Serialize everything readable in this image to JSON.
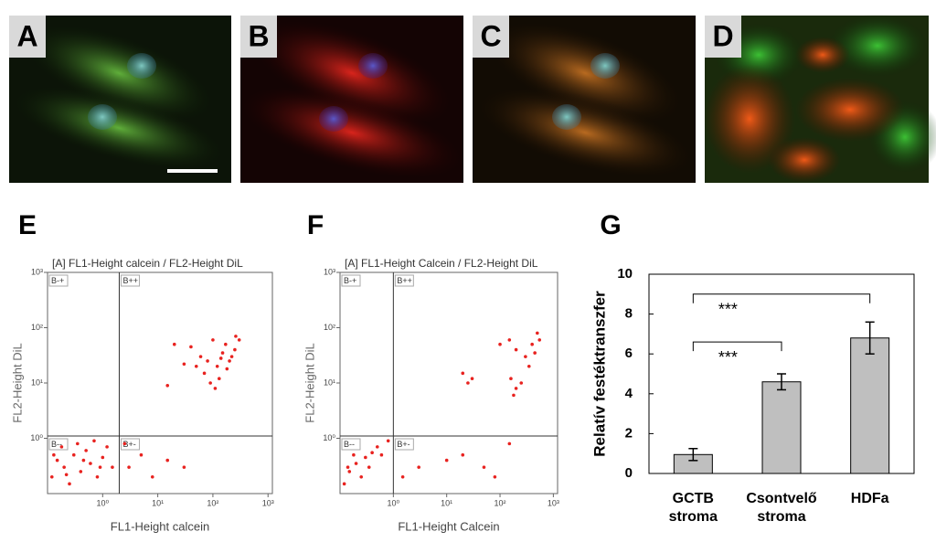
{
  "panels": [
    {
      "label": "A"
    },
    {
      "label": "B"
    },
    {
      "label": "C"
    },
    {
      "label": "D"
    }
  ],
  "flow_plots": [
    {
      "label": "E",
      "title": "[A] FL1-Height calcein / FL2-Height DiL",
      "x_label": "FL1-Height calcein",
      "y_label": "FL2-Height DiL",
      "quadrant_labels": [
        "B-+",
        "B++",
        "B--",
        "B+-"
      ],
      "quadrant": {
        "x": 2,
        "y": 1.1
      },
      "log": true,
      "color": "#e8221f",
      "xlim": [
        0.1,
        1200
      ],
      "ylim": [
        0.1,
        1000
      ],
      "xticks": [
        {
          "value": 1,
          "label": "10⁰"
        },
        {
          "value": 10,
          "label": "10¹"
        },
        {
          "value": 100,
          "label": "10²"
        },
        {
          "value": 1000,
          "label": "10³"
        }
      ],
      "yticks": [
        {
          "value": 1,
          "label": "10⁰"
        },
        {
          "value": 10,
          "label": "10¹"
        },
        {
          "value": 100,
          "label": "10²"
        },
        {
          "value": 1000,
          "label": "10³"
        }
      ],
      "points": {
        "x": [
          20,
          40,
          60,
          80,
          100,
          120,
          150,
          200,
          250,
          300,
          50,
          70,
          90,
          110,
          130,
          180,
          220,
          30,
          15,
          260,
          170,
          140,
          0.12,
          0.15,
          0.2,
          0.3,
          0.25,
          0.4,
          0.5,
          0.6,
          0.8,
          1,
          1.5,
          0.18,
          0.35,
          0.7,
          1.2,
          3,
          5,
          8,
          15,
          30,
          2.5,
          0.13,
          0.22,
          0.45,
          0.9
        ],
        "y": [
          50,
          45,
          30,
          25,
          60,
          20,
          35,
          25,
          40,
          60,
          20,
          15,
          10,
          8,
          12,
          18,
          30,
          22,
          9,
          70,
          50,
          28,
          0.2,
          0.4,
          0.3,
          0.5,
          0.15,
          0.25,
          0.6,
          0.35,
          0.2,
          0.45,
          0.3,
          0.7,
          0.8,
          0.9,
          0.7,
          0.3,
          0.5,
          0.2,
          0.4,
          0.3,
          0.8,
          0.5,
          0.22,
          0.4,
          0.3
        ]
      }
    },
    {
      "label": "F",
      "title": "[A] FL1-Height Calcein / FL2-Height DiL",
      "x_label": "FL1-Height Calcein",
      "y_label": "FL2-Height DiL",
      "quadrant_labels": [
        "B-+",
        "B++",
        "B--",
        "B+-"
      ],
      "quadrant": {
        "x": 1,
        "y": 1.1
      },
      "log": true,
      "color": "#e8221f",
      "xlim": [
        0.1,
        1200
      ],
      "ylim": [
        0.1,
        1000
      ],
      "xticks": [
        {
          "value": 1,
          "label": "10⁰"
        },
        {
          "value": 10,
          "label": "10¹"
        },
        {
          "value": 100,
          "label": "10²"
        },
        {
          "value": 1000,
          "label": "10³"
        }
      ],
      "yticks": [
        {
          "value": 1,
          "label": "10⁰"
        },
        {
          "value": 10,
          "label": "10¹"
        },
        {
          "value": 100,
          "label": "10²"
        },
        {
          "value": 1000,
          "label": "10³"
        }
      ],
      "points": {
        "x": [
          150,
          200,
          300,
          400,
          500,
          350,
          250,
          200,
          180,
          450,
          550,
          20,
          25,
          30,
          100,
          160,
          0.12,
          0.15,
          0.2,
          0.25,
          0.3,
          0.35,
          0.4,
          0.5,
          0.6,
          0.8,
          0.18,
          0.14,
          1.5,
          3,
          10,
          20,
          50,
          150,
          80
        ],
        "y": [
          60,
          40,
          30,
          50,
          80,
          20,
          10,
          8,
          6,
          35,
          60,
          15,
          10,
          12,
          50,
          12,
          0.15,
          0.25,
          0.35,
          0.2,
          0.45,
          0.3,
          0.55,
          0.7,
          0.5,
          0.9,
          0.5,
          0.3,
          0.2,
          0.3,
          0.4,
          0.5,
          0.3,
          0.8,
          0.2
        ]
      }
    }
  ],
  "chart_data": {
    "type": "bar",
    "label": "G",
    "ylabel": "Relatív festéktranszfer",
    "categories": [
      "GCTB stroma",
      "Csontvelő stroma",
      "HDFa"
    ],
    "values": [
      0.95,
      4.6,
      6.8
    ],
    "errors": [
      0.3,
      0.4,
      0.8
    ],
    "color": "#bfbfbf",
    "ylim": [
      0,
      10
    ],
    "yticks": [
      0,
      2,
      4,
      6,
      8,
      10
    ],
    "annotations": [
      {
        "text": "***",
        "from": 0,
        "to": 2,
        "y": 9.0
      },
      {
        "text": "***",
        "from": 0,
        "to": 1,
        "y": 6.6
      }
    ]
  }
}
